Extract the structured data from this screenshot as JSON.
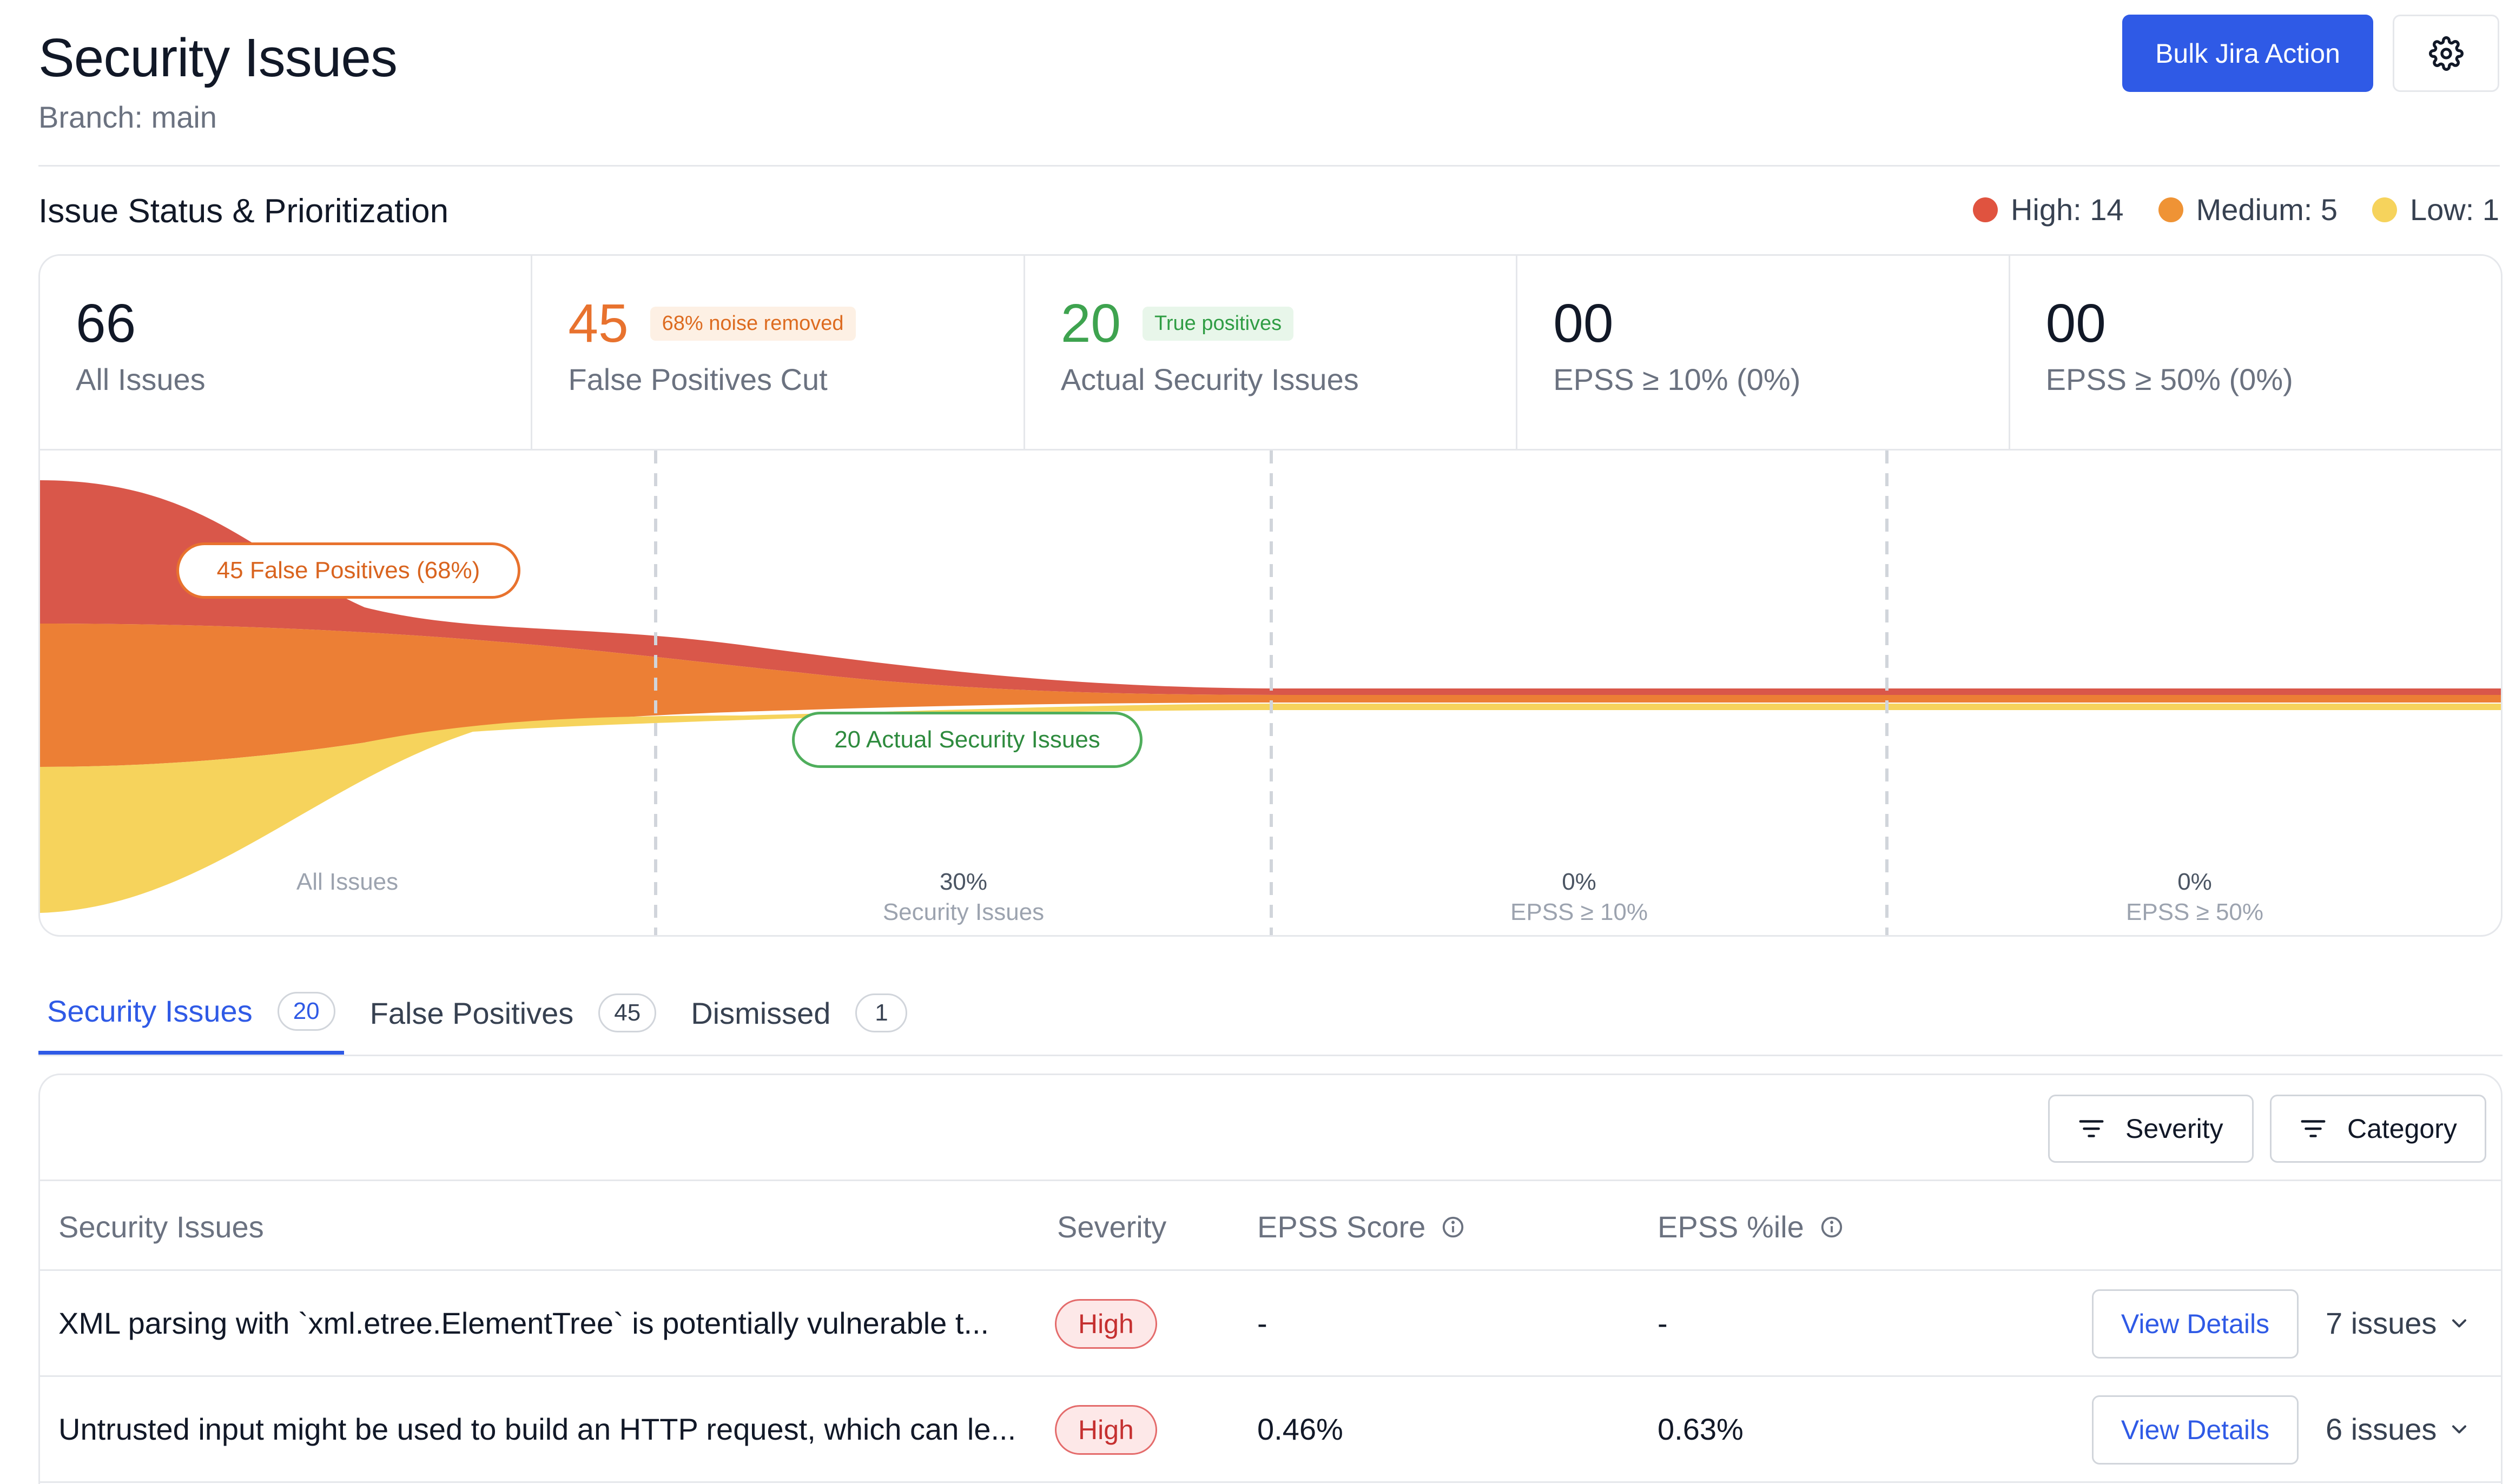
{
  "header": {
    "title": "Security Issues",
    "branch": "Branch: main",
    "bulk_action_label": "Bulk Jira Action"
  },
  "section": {
    "title": "Issue Status & Prioritization",
    "legend": [
      {
        "label": "High: 14",
        "color": "#e0533f"
      },
      {
        "label": "Medium: 5",
        "color": "#ef9335"
      },
      {
        "label": "Low: 1",
        "color": "#f6d35c"
      }
    ]
  },
  "stats": [
    {
      "value": "66",
      "label": "All Issues",
      "chip": ""
    },
    {
      "value": "45",
      "label": "False Positives Cut",
      "chip": "68% noise removed"
    },
    {
      "value": "20",
      "label": "Actual Security Issues",
      "chip": "True positives"
    },
    {
      "value": "00",
      "label": "EPSS ≥ 10% (0%)",
      "chip": ""
    },
    {
      "value": "00",
      "label": "EPSS ≥ 50% (0%)",
      "chip": ""
    }
  ],
  "funnel": {
    "false_positives_pill": "45 False Positives (68%)",
    "actual_pill": "20 Actual Security Issues",
    "columns": [
      {
        "pct": "",
        "label": "All Issues"
      },
      {
        "pct": "30%",
        "label": "Security Issues"
      },
      {
        "pct": "0%",
        "label": "EPSS ≥ 10%"
      },
      {
        "pct": "0%",
        "label": "EPSS ≥ 50%"
      }
    ],
    "colors": {
      "high": "#d9574a",
      "medium": "#ec7f35",
      "low": "#f6d35c"
    }
  },
  "tabs": [
    {
      "label": "Security Issues",
      "count": "20",
      "active": true
    },
    {
      "label": "False Positives",
      "count": "45",
      "active": false
    },
    {
      "label": "Dismissed",
      "count": "1",
      "active": false
    }
  ],
  "filters": {
    "severity_label": "Severity",
    "category_label": "Category"
  },
  "table": {
    "headers": [
      "Security Issues",
      "Severity",
      "EPSS Score",
      "EPSS %ile"
    ],
    "view_details_label": "View Details",
    "rows": [
      {
        "title": "XML parsing with `xml.etree.ElementTree` is potentially vulnerable t...",
        "severity": "High",
        "epss_score": "-",
        "epss_pct": "-",
        "issues": "7 issues"
      },
      {
        "title": "Untrusted input might be used to build an HTTP request, which can le...",
        "severity": "High",
        "epss_score": "0.46%",
        "epss_pct": "0.63%",
        "issues": "6 issues"
      }
    ]
  }
}
